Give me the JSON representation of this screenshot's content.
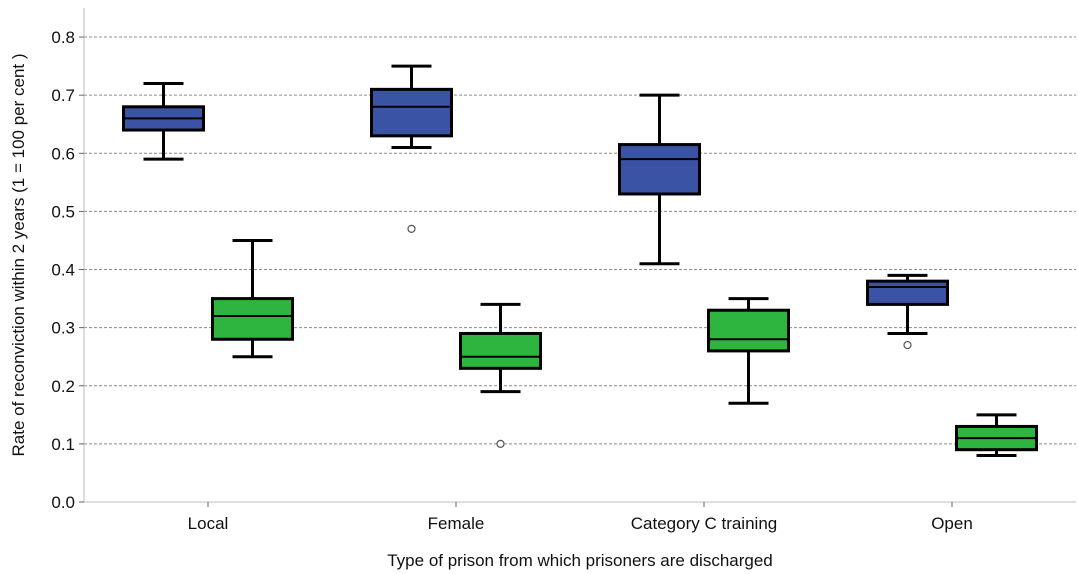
{
  "chart_data": {
    "type": "boxplot",
    "xlabel": "Type of prison from which prisoners are discharged",
    "ylabel": "Rate of reconviction within 2 years (1 = 100 per cent )",
    "ylim": [
      0,
      0.85
    ],
    "yticks": [
      "0.0",
      "0.1",
      "0.2",
      "0.3",
      "0.4",
      "0.5",
      "0.6",
      "0.7",
      "0.8"
    ],
    "grid": "horizontal dashed",
    "categories": [
      "Local",
      "Female",
      "Category C training",
      "Open"
    ],
    "series": [
      {
        "color": "#3a53a4",
        "boxes": [
          {
            "whisker_low": 0.59,
            "q1": 0.64,
            "median": 0.66,
            "q3": 0.68,
            "whisker_high": 0.72,
            "outliers": []
          },
          {
            "whisker_low": 0.61,
            "q1": 0.63,
            "median": 0.68,
            "q3": 0.71,
            "whisker_high": 0.75,
            "outliers": [
              0.47
            ]
          },
          {
            "whisker_low": 0.41,
            "q1": 0.53,
            "median": 0.59,
            "q3": 0.615,
            "whisker_high": 0.7,
            "outliers": []
          },
          {
            "whisker_low": 0.29,
            "q1": 0.34,
            "median": 0.37,
            "q3": 0.38,
            "whisker_high": 0.39,
            "outliers": [
              0.27
            ]
          }
        ]
      },
      {
        "color": "#2db540",
        "boxes": [
          {
            "whisker_low": 0.25,
            "q1": 0.28,
            "median": 0.32,
            "q3": 0.35,
            "whisker_high": 0.45,
            "outliers": []
          },
          {
            "whisker_low": 0.19,
            "q1": 0.23,
            "median": 0.25,
            "q3": 0.29,
            "whisker_high": 0.34,
            "outliers": [
              0.1
            ]
          },
          {
            "whisker_low": 0.17,
            "q1": 0.26,
            "median": 0.28,
            "q3": 0.33,
            "whisker_high": 0.35,
            "outliers": []
          },
          {
            "whisker_low": 0.08,
            "q1": 0.09,
            "median": 0.11,
            "q3": 0.13,
            "whisker_high": 0.15,
            "outliers": []
          }
        ]
      }
    ]
  }
}
